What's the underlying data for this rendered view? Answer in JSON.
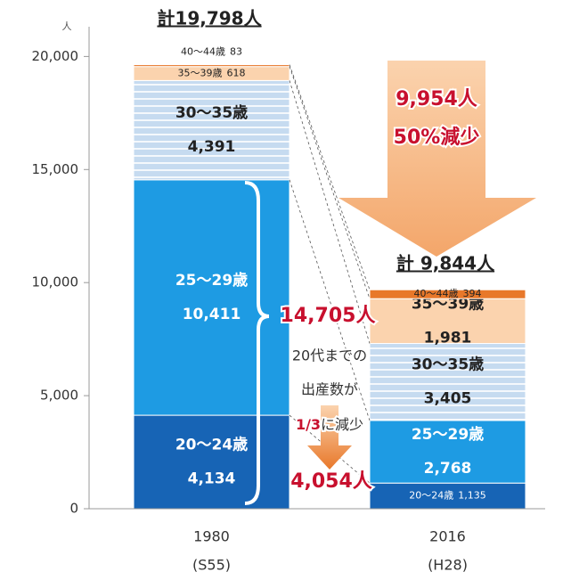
{
  "chart_data": {
    "type": "stacked_bar",
    "unit_label": "人",
    "categories": [
      "1980",
      "2016"
    ],
    "category_sublabels": [
      "(S55)",
      "(H28)"
    ],
    "series": [
      {
        "name": "20～24歳",
        "color": "#1764b5",
        "values": [
          4134,
          1135
        ],
        "value_labels": [
          "4,134",
          "1,135"
        ]
      },
      {
        "name": "25～29歳",
        "color": "#1e9be3",
        "values": [
          10411,
          2768
        ],
        "value_labels": [
          "10,411",
          "2,768"
        ]
      },
      {
        "name": "30～35歳",
        "color": "#c6dbf0",
        "values": [
          4391,
          3405
        ],
        "value_labels": [
          "4,391",
          "3,405"
        ]
      },
      {
        "name": "35～39歳",
        "color": "#fbd3ae",
        "values": [
          618,
          1981
        ],
        "value_labels": [
          "618",
          "1,981"
        ]
      },
      {
        "name": "40～44歳",
        "color": "#e8782a",
        "values": [
          83,
          394
        ],
        "value_labels": [
          "83",
          "394"
        ]
      }
    ],
    "ylim": [
      0,
      21000
    ],
    "yticks": [
      0,
      {
        "value": 5000,
        "label": "5,000"
      },
      {
        "value": 10000,
        "label": "10,000"
      },
      {
        "value": 15000,
        "label": "15,000"
      },
      {
        "value": 20000,
        "label": "20,000"
      }
    ],
    "annotations": {
      "total_1980": "計19,798人",
      "total_2016": "計 9,844人",
      "decrease": "9,954人",
      "decrease_pct": "50%減少",
      "under30_1980": "14,705人",
      "note_line1": "20代までの",
      "note_line2": "出産数が",
      "note_line3a": "1/3",
      "note_line3b": "に減少",
      "under30_2016": "4,054人"
    }
  }
}
